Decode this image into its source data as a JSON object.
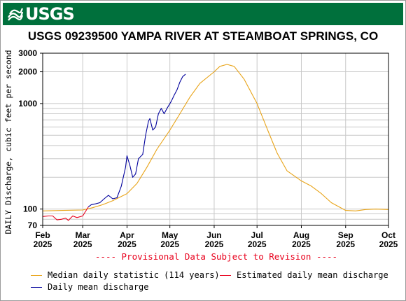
{
  "header": {
    "logo_text": "USGS",
    "logo_icon": "usgs-wave-icon",
    "banner_color": "#00703c"
  },
  "chart_data": {
    "type": "line",
    "title": "USGS 09239500 YAMPA RIVER AT STEAMBOAT SPRINGS, CO",
    "ylabel": "DAILY Discharge, cubic feet per second",
    "xlabel": "",
    "y_scale": "log",
    "ylim": [
      70,
      3000
    ],
    "xlim": [
      "2025-02-01",
      "2025-10-01"
    ],
    "grid": true,
    "y_ticks": [
      {
        "value": 70,
        "label": "70"
      },
      {
        "value": 100,
        "label": "100"
      },
      {
        "value": 1000,
        "label": "1000"
      },
      {
        "value": 2000,
        "label": "2000"
      },
      {
        "value": 3000,
        "label": "3000"
      }
    ],
    "x_ticks": [
      {
        "date": "2025-02-01",
        "month": "Feb",
        "year": "2025"
      },
      {
        "date": "2025-03-01",
        "month": "Mar",
        "year": "2025"
      },
      {
        "date": "2025-04-01",
        "month": "Apr",
        "year": "2025"
      },
      {
        "date": "2025-05-01",
        "month": "May",
        "year": "2025"
      },
      {
        "date": "2025-06-01",
        "month": "Jun",
        "year": "2025"
      },
      {
        "date": "2025-07-01",
        "month": "Jul",
        "year": "2025"
      },
      {
        "date": "2025-08-01",
        "month": "Aug",
        "year": "2025"
      },
      {
        "date": "2025-09-01",
        "month": "Sep",
        "year": "2025"
      },
      {
        "date": "2025-10-01",
        "month": "Oct",
        "year": "2025"
      }
    ],
    "annotation": "---- Provisional Data Subject to Revision ----",
    "legend_position": "bottom",
    "series": [
      {
        "name": "Median daily statistic (114 years)",
        "color": "#e8a317",
        "points": [
          [
            "2025-02-01",
            96
          ],
          [
            "2025-02-15",
            97
          ],
          [
            "2025-03-01",
            98
          ],
          [
            "2025-03-08",
            103
          ],
          [
            "2025-03-15",
            110
          ],
          [
            "2025-03-22",
            120
          ],
          [
            "2025-04-01",
            140
          ],
          [
            "2025-04-08",
            175
          ],
          [
            "2025-04-15",
            250
          ],
          [
            "2025-04-22",
            370
          ],
          [
            "2025-05-01",
            560
          ],
          [
            "2025-05-08",
            800
          ],
          [
            "2025-05-15",
            1150
          ],
          [
            "2025-05-22",
            1550
          ],
          [
            "2025-06-01",
            2000
          ],
          [
            "2025-06-05",
            2250
          ],
          [
            "2025-06-10",
            2350
          ],
          [
            "2025-06-15",
            2250
          ],
          [
            "2025-06-22",
            1700
          ],
          [
            "2025-07-01",
            1000
          ],
          [
            "2025-07-08",
            580
          ],
          [
            "2025-07-15",
            340
          ],
          [
            "2025-07-22",
            230
          ],
          [
            "2025-08-01",
            185
          ],
          [
            "2025-08-08",
            165
          ],
          [
            "2025-08-15",
            140
          ],
          [
            "2025-08-22",
            115
          ],
          [
            "2025-09-01",
            97
          ],
          [
            "2025-09-08",
            96
          ],
          [
            "2025-09-15",
            99
          ],
          [
            "2025-09-22",
            100
          ],
          [
            "2025-10-01",
            99
          ]
        ]
      },
      {
        "name": "Estimated daily mean discharge",
        "color": "#e8001c",
        "points": [
          [
            "2025-02-01",
            85
          ],
          [
            "2025-02-05",
            86
          ],
          [
            "2025-02-08",
            86
          ],
          [
            "2025-02-11",
            79
          ],
          [
            "2025-02-14",
            80
          ],
          [
            "2025-02-17",
            82
          ],
          [
            "2025-02-19",
            78
          ],
          [
            "2025-02-22",
            86
          ],
          [
            "2025-02-25",
            83
          ],
          [
            "2025-03-01",
            86
          ],
          [
            "2025-03-03",
            95
          ],
          [
            "2025-03-05",
            105
          ]
        ]
      },
      {
        "name": "Daily mean discharge",
        "color": "#00009c",
        "points": [
          [
            "2025-03-05",
            105
          ],
          [
            "2025-03-07",
            110
          ],
          [
            "2025-03-10",
            112
          ],
          [
            "2025-03-13",
            115
          ],
          [
            "2025-03-16",
            125
          ],
          [
            "2025-03-19",
            135
          ],
          [
            "2025-03-22",
            125
          ],
          [
            "2025-03-25",
            128
          ],
          [
            "2025-03-28",
            165
          ],
          [
            "2025-03-31",
            250
          ],
          [
            "2025-04-01",
            320
          ],
          [
            "2025-04-03",
            260
          ],
          [
            "2025-04-05",
            200
          ],
          [
            "2025-04-07",
            215
          ],
          [
            "2025-04-09",
            300
          ],
          [
            "2025-04-12",
            330
          ],
          [
            "2025-04-14",
            500
          ],
          [
            "2025-04-16",
            680
          ],
          [
            "2025-04-17",
            720
          ],
          [
            "2025-04-19",
            560
          ],
          [
            "2025-04-21",
            600
          ],
          [
            "2025-04-23",
            800
          ],
          [
            "2025-04-25",
            900
          ],
          [
            "2025-04-27",
            800
          ],
          [
            "2025-04-29",
            900
          ],
          [
            "2025-05-02",
            1050
          ],
          [
            "2025-05-04",
            1200
          ],
          [
            "2025-05-06",
            1350
          ],
          [
            "2025-05-08",
            1600
          ],
          [
            "2025-05-10",
            1800
          ],
          [
            "2025-05-12",
            1900
          ]
        ]
      }
    ]
  }
}
